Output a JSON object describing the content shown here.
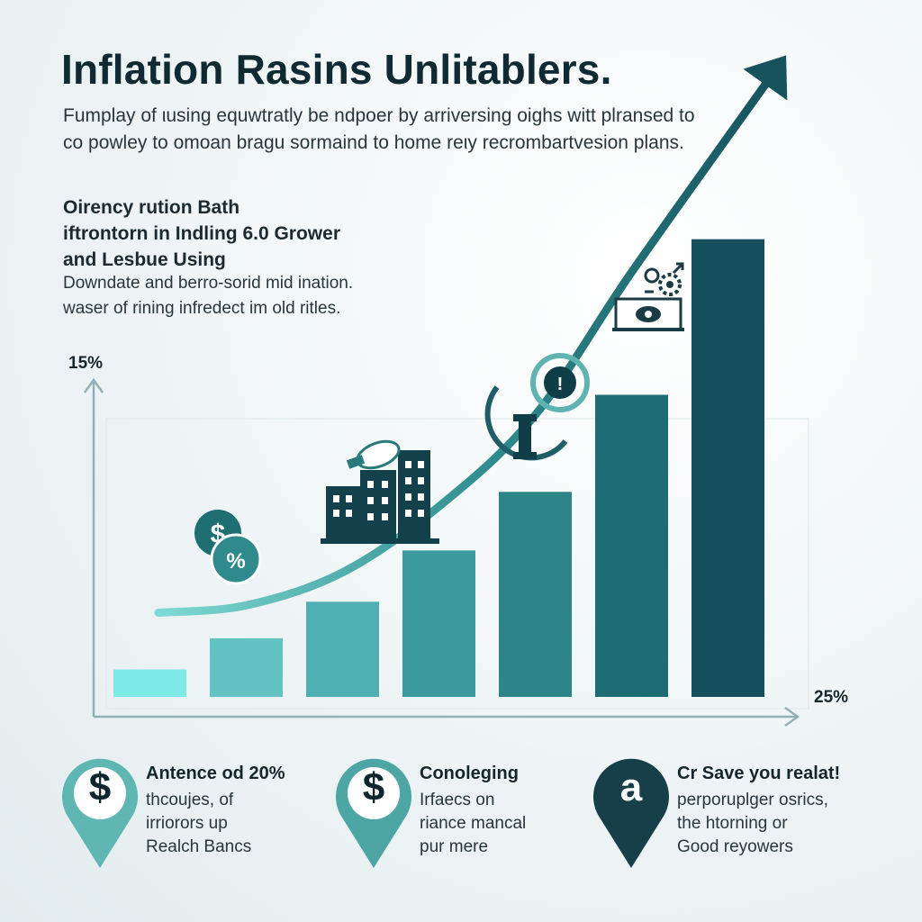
{
  "header": {
    "title": "Inflation Rasins Unlitablers.",
    "subtitle_lines": [
      "Fumplay of ιusing equwtratly be ndpoer by arriversing oighs witt plransed to",
      "co powley to omoan bragu sormaind to home reιy recrombartvesion plans."
    ]
  },
  "section": {
    "heading_lines": [
      "Oirency rution Bath",
      "iftrontorn in Indling 6.0 Grower",
      "and Lesbue Using"
    ],
    "text_lines": [
      "Downdate and berro-sorid mid ination.",
      "waser of rining infredect im old ritles."
    ]
  },
  "axis": {
    "y_label": "15%",
    "x_label": "25%"
  },
  "chart_data": {
    "type": "bar",
    "categories": [
      "",
      "",
      "",
      "",
      "",
      "",
      ""
    ],
    "values": [
      1.5,
      3.2,
      5.2,
      8.0,
      11.2,
      16.5,
      25.0
    ],
    "trend_line": [
      4.6,
      5.0,
      6.8,
      10.4,
      15.4,
      23.2,
      34.0
    ],
    "ylim": [
      0,
      30
    ],
    "bar_colors": [
      "#7fe9e6",
      "#63c3c2",
      "#4fb0b1",
      "#3b9a9c",
      "#2d8588",
      "#1f6d74",
      "#154f5b"
    ],
    "trend_color": "#16535d",
    "grid": false
  },
  "icons": {
    "money_bubbles": "dollar-percent-bubble-icon",
    "buildings": "city-buildings-icon",
    "info": "info-circle-icon",
    "vault": "safe-eye-icon",
    "gears": "gears-exchange-icon"
  },
  "cards": [
    {
      "glyph": "$",
      "icon": "dollar-pin-icon",
      "pin_color": "#5fb6b3",
      "title": "Antence od 20%",
      "lines": [
        "thcoujes, of",
        "irriorors up",
        "Realch Bancs"
      ]
    },
    {
      "glyph": "$",
      "icon": "dollar-pin-icon",
      "pin_color": "#4ea6a4",
      "title": "Conoleging",
      "lines": [
        "Irfaecs on",
        "riance mancal",
        "pur mere"
      ]
    },
    {
      "glyph": "a",
      "icon": "letter-a-pin-icon",
      "pin_color": "#173f4a",
      "title": "Cr Save you realat!",
      "lines": [
        "perporuplger osrics,",
        "the htorning or",
        "Good reyowers"
      ]
    }
  ]
}
